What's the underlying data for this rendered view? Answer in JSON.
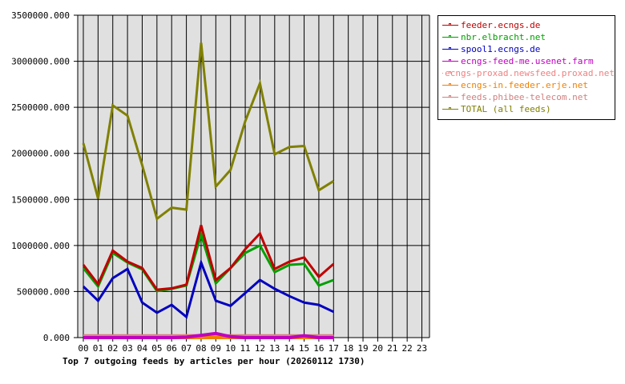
{
  "chart_data": {
    "type": "line",
    "title": "Top 7 outgoing feeds by articles per hour (20260112 1730)",
    "xlabel": "",
    "ylabel": "",
    "ylim": [
      0,
      3500000
    ],
    "yticks": [
      "0.000",
      "500000.000",
      "1000000.000",
      "1500000.000",
      "2000000.000",
      "2500000.000",
      "3000000.000",
      "3500000.000"
    ],
    "categories": [
      "00",
      "01",
      "02",
      "03",
      "04",
      "05",
      "06",
      "07",
      "08",
      "09",
      "10",
      "11",
      "12",
      "13",
      "14",
      "15",
      "16",
      "17",
      "18",
      "19",
      "20",
      "21",
      "22",
      "23"
    ],
    "grid": true,
    "legend_position": "right",
    "series": [
      {
        "name": "feeder.ecngs.de",
        "color": "#c00000",
        "values": [
          790000,
          580000,
          945000,
          825000,
          755000,
          520000,
          535000,
          575000,
          1220000,
          625000,
          755000,
          960000,
          1130000,
          745000,
          825000,
          870000,
          660000,
          800000
        ]
      },
      {
        "name": "nbr.elbracht.net",
        "color": "#00a000",
        "values": [
          755000,
          555000,
          920000,
          815000,
          740000,
          505000,
          530000,
          565000,
          1120000,
          590000,
          755000,
          920000,
          1000000,
          710000,
          790000,
          800000,
          565000,
          625000
        ]
      },
      {
        "name": "spool1.ecngs.de",
        "color": "#0000c0",
        "values": [
          555000,
          400000,
          645000,
          745000,
          380000,
          270000,
          355000,
          225000,
          815000,
          400000,
          345000,
          485000,
          625000,
          530000,
          450000,
          380000,
          355000,
          280000
        ]
      },
      {
        "name": "ecngs-feed-me.usenet.farm",
        "color": "#c000c0",
        "values": [
          0,
          0,
          0,
          0,
          0,
          0,
          0,
          5000,
          25000,
          45000,
          10000,
          0,
          0,
          0,
          0,
          20000,
          0,
          0
        ]
      },
      {
        "name": "ecngs-proxad.newsfeed.proxad.net",
        "color": "#f08080",
        "values": [
          10000,
          10000,
          10000,
          10000,
          10000,
          10000,
          10000,
          20000,
          20000,
          20000,
          15000,
          10000,
          10000,
          10000,
          10000,
          10000,
          10000,
          10000
        ]
      },
      {
        "name": "ecngs-in.feeder.erje.net",
        "color": "#f08000",
        "values": [
          0,
          0,
          0,
          0,
          0,
          0,
          0,
          0,
          0,
          0,
          0,
          0,
          0,
          0,
          0,
          0,
          0,
          0
        ]
      },
      {
        "name": "feeds.phibee-telecom.net",
        "color": "#d08080",
        "values": [
          20000,
          20000,
          20000,
          20000,
          20000,
          20000,
          20000,
          20000,
          20000,
          20000,
          20000,
          20000,
          20000,
          20000,
          20000,
          20000,
          20000,
          20000
        ]
      },
      {
        "name": "TOTAL (all feeds)",
        "color": "#808000",
        "values": [
          2110000,
          1510000,
          2520000,
          2410000,
          1870000,
          1290000,
          1410000,
          1390000,
          3200000,
          1640000,
          1820000,
          2350000,
          2760000,
          1990000,
          2070000,
          2080000,
          1600000,
          1700000
        ]
      }
    ]
  },
  "legend": {
    "items": [
      {
        "label": "feeder.ecngs.de",
        "color": "#c00000"
      },
      {
        "label": "nbr.elbracht.net",
        "color": "#00a000"
      },
      {
        "label": "spool1.ecngs.de",
        "color": "#0000c0"
      },
      {
        "label": "ecngs-feed-me.usenet.farm",
        "color": "#c000c0"
      },
      {
        "label": "ecngs-proxad.newsfeed.proxad.net",
        "color": "#f08080"
      },
      {
        "label": "ecngs-in.feeder.erje.net",
        "color": "#f08000"
      },
      {
        "label": "feeds.phibee-telecom.net",
        "color": "#d08080"
      },
      {
        "label": "TOTAL (all feeds)",
        "color": "#808000"
      }
    ]
  },
  "colors": {
    "plot_bg": "#e0e0e0",
    "grid": "#000000"
  }
}
